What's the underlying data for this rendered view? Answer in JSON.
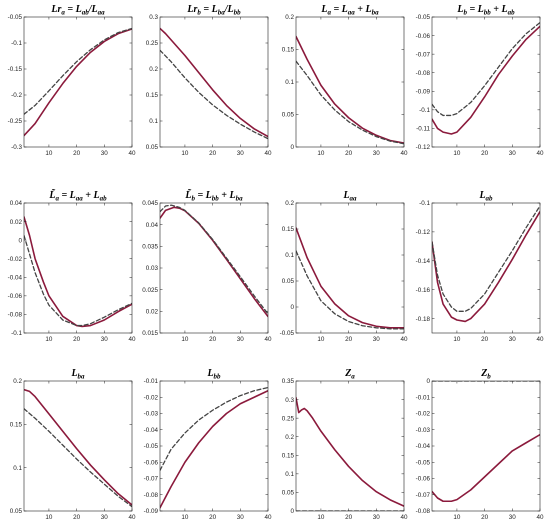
{
  "figure": {
    "line_colors": {
      "solid": "#8b1a3c",
      "dashed": "#444444"
    }
  },
  "chart_data": [
    {
      "type": "line",
      "title": "Lr_a = L_ab/L_aa",
      "xlim": [
        1,
        40
      ],
      "ylim": [
        -0.3,
        -0.05
      ],
      "xticks": [
        10,
        20,
        30,
        40
      ],
      "xtick_labels": [
        "10",
        "20",
        "30",
        "40"
      ],
      "yticks": [
        -0.3,
        -0.25,
        -0.2,
        -0.15,
        -0.1,
        -0.05
      ],
      "ytick_labels": [
        "-0.3",
        "-0.25",
        "-0.2",
        "-0.15",
        "-0.1",
        "-0.05"
      ],
      "series": [
        {
          "style": "solid",
          "x": [
            1,
            5,
            10,
            15,
            20,
            25,
            30,
            35,
            40
          ],
          "y": [
            -0.278,
            -0.255,
            -0.215,
            -0.178,
            -0.145,
            -0.118,
            -0.097,
            -0.082,
            -0.073
          ]
        },
        {
          "style": "dashed",
          "x": [
            1,
            5,
            10,
            15,
            20,
            25,
            30,
            35,
            40
          ],
          "y": [
            -0.237,
            -0.22,
            -0.192,
            -0.163,
            -0.136,
            -0.113,
            -0.094,
            -0.08,
            -0.072
          ]
        }
      ]
    },
    {
      "type": "line",
      "title": "Lr_b = L_ba/L_bb",
      "xlim": [
        1,
        40
      ],
      "ylim": [
        0.05,
        0.3
      ],
      "xticks": [
        10,
        20,
        30,
        40
      ],
      "xtick_labels": [
        "10",
        "20",
        "30",
        "40"
      ],
      "yticks": [
        0.05,
        0.1,
        0.15,
        0.2,
        0.25,
        0.3
      ],
      "ytick_labels": [
        "0.05",
        "0.1",
        "0.15",
        "0.2",
        "0.25",
        "0.3"
      ],
      "series": [
        {
          "style": "solid",
          "x": [
            1,
            3,
            5,
            10,
            15,
            20,
            25,
            30,
            35,
            40
          ],
          "y": [
            0.278,
            0.268,
            0.256,
            0.226,
            0.193,
            0.16,
            0.13,
            0.105,
            0.085,
            0.07
          ]
        },
        {
          "style": "dashed",
          "x": [
            1,
            5,
            10,
            15,
            20,
            25,
            30,
            35,
            40
          ],
          "y": [
            0.236,
            0.214,
            0.183,
            0.155,
            0.131,
            0.111,
            0.094,
            0.079,
            0.066
          ]
        }
      ]
    },
    {
      "type": "line",
      "title": "L_a = L_aa + L_ba",
      "xlim": [
        1,
        40
      ],
      "ylim": [
        0,
        0.2
      ],
      "xticks": [
        10,
        20,
        30,
        40
      ],
      "xtick_labels": [
        "10",
        "20",
        "30",
        "40"
      ],
      "yticks": [
        0,
        0.05,
        0.1,
        0.15,
        0.2
      ],
      "ytick_labels": [
        "0",
        "0.05",
        "0.1",
        "0.15",
        "0.2"
      ],
      "series": [
        {
          "style": "solid",
          "x": [
            1,
            5,
            10,
            15,
            20,
            25,
            30,
            35,
            40
          ],
          "y": [
            0.17,
            0.135,
            0.095,
            0.066,
            0.045,
            0.029,
            0.018,
            0.01,
            0.006
          ]
        },
        {
          "style": "dashed",
          "x": [
            1,
            5,
            10,
            15,
            20,
            25,
            30,
            35,
            40
          ],
          "y": [
            0.132,
            0.11,
            0.08,
            0.057,
            0.039,
            0.026,
            0.016,
            0.009,
            0.005
          ]
        }
      ]
    },
    {
      "type": "line",
      "title": "L_b = L_bb + L_ab",
      "xlim": [
        1,
        40
      ],
      "ylim": [
        -0.12,
        -0.05
      ],
      "xticks": [
        10,
        20,
        30,
        40
      ],
      "xtick_labels": [
        "10",
        "20",
        "30",
        "40"
      ],
      "yticks": [
        -0.12,
        -0.11,
        -0.1,
        -0.09,
        -0.08,
        -0.07,
        -0.06,
        -0.05
      ],
      "ytick_labels": [
        "-0.12",
        "-0.11",
        "-0.1",
        "-0.09",
        "-0.08",
        "-0.07",
        "-0.06",
        "-0.05"
      ],
      "series": [
        {
          "style": "solid",
          "x": [
            1,
            3,
            5,
            8,
            10,
            15,
            20,
            25,
            30,
            35,
            40
          ],
          "y": [
            -0.105,
            -0.11,
            -0.112,
            -0.113,
            -0.112,
            -0.104,
            -0.093,
            -0.081,
            -0.071,
            -0.062,
            -0.055
          ]
        },
        {
          "style": "dashed",
          "x": [
            1,
            3,
            5,
            8,
            10,
            15,
            20,
            25,
            30,
            35,
            40
          ],
          "y": [
            -0.097,
            -0.101,
            -0.103,
            -0.103,
            -0.102,
            -0.096,
            -0.087,
            -0.077,
            -0.067,
            -0.059,
            -0.053
          ]
        }
      ]
    },
    {
      "type": "line",
      "title": "L̃_a = L_aa + L_ab",
      "xlim": [
        1,
        40
      ],
      "ylim": [
        -0.1,
        0.04
      ],
      "xticks": [
        10,
        20,
        30,
        40
      ],
      "xtick_labels": [
        "10",
        "20",
        "30",
        "40"
      ],
      "yticks": [
        -0.1,
        -0.08,
        -0.06,
        -0.04,
        -0.02,
        0,
        0.02,
        0.04
      ],
      "ytick_labels": [
        "-0.1",
        "-0.08",
        "-0.06",
        "-0.04",
        "-0.02",
        "0",
        "0.02",
        "0.04"
      ],
      "series": [
        {
          "style": "solid",
          "x": [
            1,
            3,
            5,
            8,
            10,
            15,
            20,
            22,
            25,
            30,
            35,
            40
          ],
          "y": [
            0.025,
            0.005,
            -0.02,
            -0.045,
            -0.06,
            -0.082,
            -0.092,
            -0.093,
            -0.092,
            -0.086,
            -0.077,
            -0.069
          ]
        },
        {
          "style": "dashed",
          "x": [
            1,
            3,
            5,
            8,
            10,
            15,
            20,
            22,
            25,
            30,
            35,
            40
          ],
          "y": [
            0.005,
            -0.015,
            -0.035,
            -0.058,
            -0.07,
            -0.086,
            -0.092,
            -0.092,
            -0.09,
            -0.083,
            -0.075,
            -0.068
          ]
        }
      ]
    },
    {
      "type": "line",
      "title": "L̃_b = L_bb + L_ba",
      "xlim": [
        1,
        40
      ],
      "ylim": [
        0.015,
        0.045
      ],
      "xticks": [
        10,
        20,
        30,
        40
      ],
      "xtick_labels": [
        "10",
        "20",
        "30",
        "40"
      ],
      "yticks": [
        0.015,
        0.02,
        0.025,
        0.03,
        0.035,
        0.04,
        0.045
      ],
      "ytick_labels": [
        "0.015",
        "0.02",
        "0.025",
        "0.03",
        "0.035",
        "0.04",
        "0.045"
      ],
      "series": [
        {
          "style": "solid",
          "x": [
            1,
            3,
            6,
            8,
            10,
            15,
            20,
            25,
            30,
            35,
            40
          ],
          "y": [
            0.0415,
            0.0433,
            0.044,
            0.0438,
            0.0432,
            0.0403,
            0.0364,
            0.032,
            0.0275,
            0.023,
            0.0188
          ]
        },
        {
          "style": "dashed",
          "x": [
            1,
            3,
            5,
            8,
            10,
            15,
            20,
            25,
            30,
            35,
            40
          ],
          "y": [
            0.043,
            0.0443,
            0.0445,
            0.044,
            0.0433,
            0.0404,
            0.0366,
            0.0323,
            0.028,
            0.0236,
            0.0194
          ]
        }
      ]
    },
    {
      "type": "line",
      "title": "L_aa",
      "xlim": [
        1,
        40
      ],
      "ylim": [
        -0.05,
        0.2
      ],
      "xticks": [
        10,
        20,
        30,
        40
      ],
      "xtick_labels": [
        "10",
        "20",
        "30",
        "40"
      ],
      "yticks": [
        -0.05,
        0,
        0.05,
        0.1,
        0.15,
        0.2
      ],
      "ytick_labels": [
        "-0.05",
        "0",
        "0.05",
        "0.1",
        "0.15",
        "0.2"
      ],
      "series": [
        {
          "style": "solid",
          "x": [
            1,
            5,
            10,
            15,
            20,
            25,
            30,
            35,
            40
          ],
          "y": [
            0.152,
            0.095,
            0.04,
            0.006,
            -0.017,
            -0.03,
            -0.037,
            -0.04,
            -0.04
          ]
        },
        {
          "style": "dashed",
          "x": [
            1,
            5,
            10,
            15,
            20,
            25,
            30,
            35,
            40
          ],
          "y": [
            0.108,
            0.06,
            0.012,
            -0.013,
            -0.028,
            -0.036,
            -0.04,
            -0.042,
            -0.042
          ]
        }
      ]
    },
    {
      "type": "line",
      "title": "L_ab",
      "xlim": [
        1,
        40
      ],
      "ylim": [
        -0.19,
        -0.1
      ],
      "xticks": [
        10,
        20,
        30,
        40
      ],
      "xtick_labels": [
        "10",
        "20",
        "30",
        "40"
      ],
      "yticks": [
        -0.18,
        -0.16,
        -0.14,
        -0.12,
        -0.1
      ],
      "ytick_labels": [
        "-0.18",
        "-0.16",
        "-0.14",
        "-0.12",
        "-0.1"
      ],
      "series": [
        {
          "style": "solid",
          "x": [
            1,
            3,
            5,
            8,
            10,
            13,
            15,
            20,
            25,
            30,
            35,
            40
          ],
          "y": [
            -0.127,
            -0.155,
            -0.17,
            -0.179,
            -0.181,
            -0.182,
            -0.18,
            -0.17,
            -0.155,
            -0.139,
            -0.122,
            -0.106
          ]
        },
        {
          "style": "dashed",
          "x": [
            1,
            3,
            5,
            8,
            10,
            13,
            15,
            20,
            25,
            30,
            35,
            40
          ],
          "y": [
            -0.127,
            -0.15,
            -0.163,
            -0.172,
            -0.175,
            -0.175,
            -0.173,
            -0.163,
            -0.148,
            -0.133,
            -0.117,
            -0.102
          ]
        }
      ]
    },
    {
      "type": "line",
      "title": "L_ba",
      "xlim": [
        1,
        40
      ],
      "ylim": [
        0.05,
        0.2
      ],
      "xticks": [
        10,
        20,
        30,
        40
      ],
      "xtick_labels": [
        "10",
        "20",
        "30",
        "40"
      ],
      "yticks": [
        0.05,
        0.1,
        0.15,
        0.2
      ],
      "ytick_labels": [
        "0.05",
        "0.1",
        "0.15",
        "0.2"
      ],
      "series": [
        {
          "style": "solid",
          "x": [
            1,
            3,
            5,
            10,
            15,
            20,
            25,
            30,
            35,
            40
          ],
          "y": [
            0.19,
            0.188,
            0.182,
            0.162,
            0.142,
            0.122,
            0.103,
            0.086,
            0.07,
            0.057
          ]
        },
        {
          "style": "dashed",
          "x": [
            1,
            5,
            10,
            15,
            20,
            25,
            30,
            35,
            40
          ],
          "y": [
            0.168,
            0.157,
            0.142,
            0.126,
            0.11,
            0.095,
            0.081,
            0.067,
            0.055
          ]
        }
      ]
    },
    {
      "type": "line",
      "title": "L_bb",
      "xlim": [
        1,
        40
      ],
      "ylim": [
        -0.09,
        -0.01
      ],
      "xticks": [
        10,
        20,
        30,
        40
      ],
      "xtick_labels": [
        "10",
        "20",
        "30",
        "40"
      ],
      "yticks": [
        -0.09,
        -0.08,
        -0.07,
        -0.06,
        -0.05,
        -0.04,
        -0.03,
        -0.02,
        -0.01
      ],
      "ytick_labels": [
        "-0.09",
        "-0.08",
        "-0.07",
        "-0.06",
        "-0.05",
        "-0.04",
        "-0.03",
        "-0.02",
        "-0.01"
      ],
      "series": [
        {
          "style": "solid",
          "x": [
            1,
            5,
            10,
            15,
            20,
            25,
            30,
            35,
            40
          ],
          "y": [
            -0.088,
            -0.075,
            -0.06,
            -0.048,
            -0.038,
            -0.03,
            -0.024,
            -0.02,
            -0.016
          ]
        },
        {
          "style": "dashed",
          "x": [
            1,
            5,
            10,
            15,
            20,
            25,
            30,
            35,
            40
          ],
          "y": [
            -0.065,
            -0.052,
            -0.042,
            -0.034,
            -0.028,
            -0.023,
            -0.019,
            -0.016,
            -0.014
          ]
        }
      ]
    },
    {
      "type": "line",
      "title": "Z_a",
      "xlim": [
        1,
        40
      ],
      "ylim": [
        0,
        0.35
      ],
      "xticks": [
        10,
        20,
        30,
        40
      ],
      "xtick_labels": [
        "10",
        "20",
        "30",
        "40"
      ],
      "yticks": [
        0,
        0.05,
        0.1,
        0.15,
        0.2,
        0.25,
        0.3,
        0.35
      ],
      "ytick_labels": [
        "0",
        "0.05",
        "0.1",
        "0.15",
        "0.2",
        "0.25",
        "0.3",
        "0.35"
      ],
      "series": [
        {
          "style": "solid",
          "x": [
            1,
            2,
            3,
            4,
            5,
            7,
            10,
            15,
            20,
            25,
            30,
            35,
            40
          ],
          "y": [
            0.305,
            0.265,
            0.272,
            0.276,
            0.27,
            0.25,
            0.215,
            0.165,
            0.12,
            0.082,
            0.052,
            0.03,
            0.013
          ]
        },
        {
          "style": "dashed",
          "x": [
            1,
            40
          ],
          "y": [
            0,
            0
          ]
        }
      ]
    },
    {
      "type": "line",
      "title": "Z_b",
      "xlim": [
        1,
        40
      ],
      "ylim": [
        -0.08,
        0
      ],
      "xticks": [
        10,
        20,
        30,
        40
      ],
      "xtick_labels": [
        "10",
        "20",
        "30",
        "40"
      ],
      "yticks": [
        -0.08,
        -0.07,
        -0.06,
        -0.05,
        -0.04,
        -0.03,
        -0.02,
        -0.01,
        0
      ],
      "ytick_labels": [
        "-0.08",
        "-0.07",
        "-0.06",
        "-0.05",
        "-0.04",
        "-0.03",
        "-0.02",
        "-0.01",
        "0"
      ],
      "series": [
        {
          "style": "solid",
          "x": [
            1,
            3,
            5,
            8,
            10,
            15,
            20,
            25,
            30,
            35,
            40
          ],
          "y": [
            -0.068,
            -0.072,
            -0.074,
            -0.074,
            -0.073,
            -0.067,
            -0.059,
            -0.051,
            -0.043,
            -0.038,
            -0.033
          ]
        },
        {
          "style": "dashed",
          "x": [
            1,
            40
          ],
          "y": [
            0,
            0
          ]
        }
      ]
    }
  ]
}
